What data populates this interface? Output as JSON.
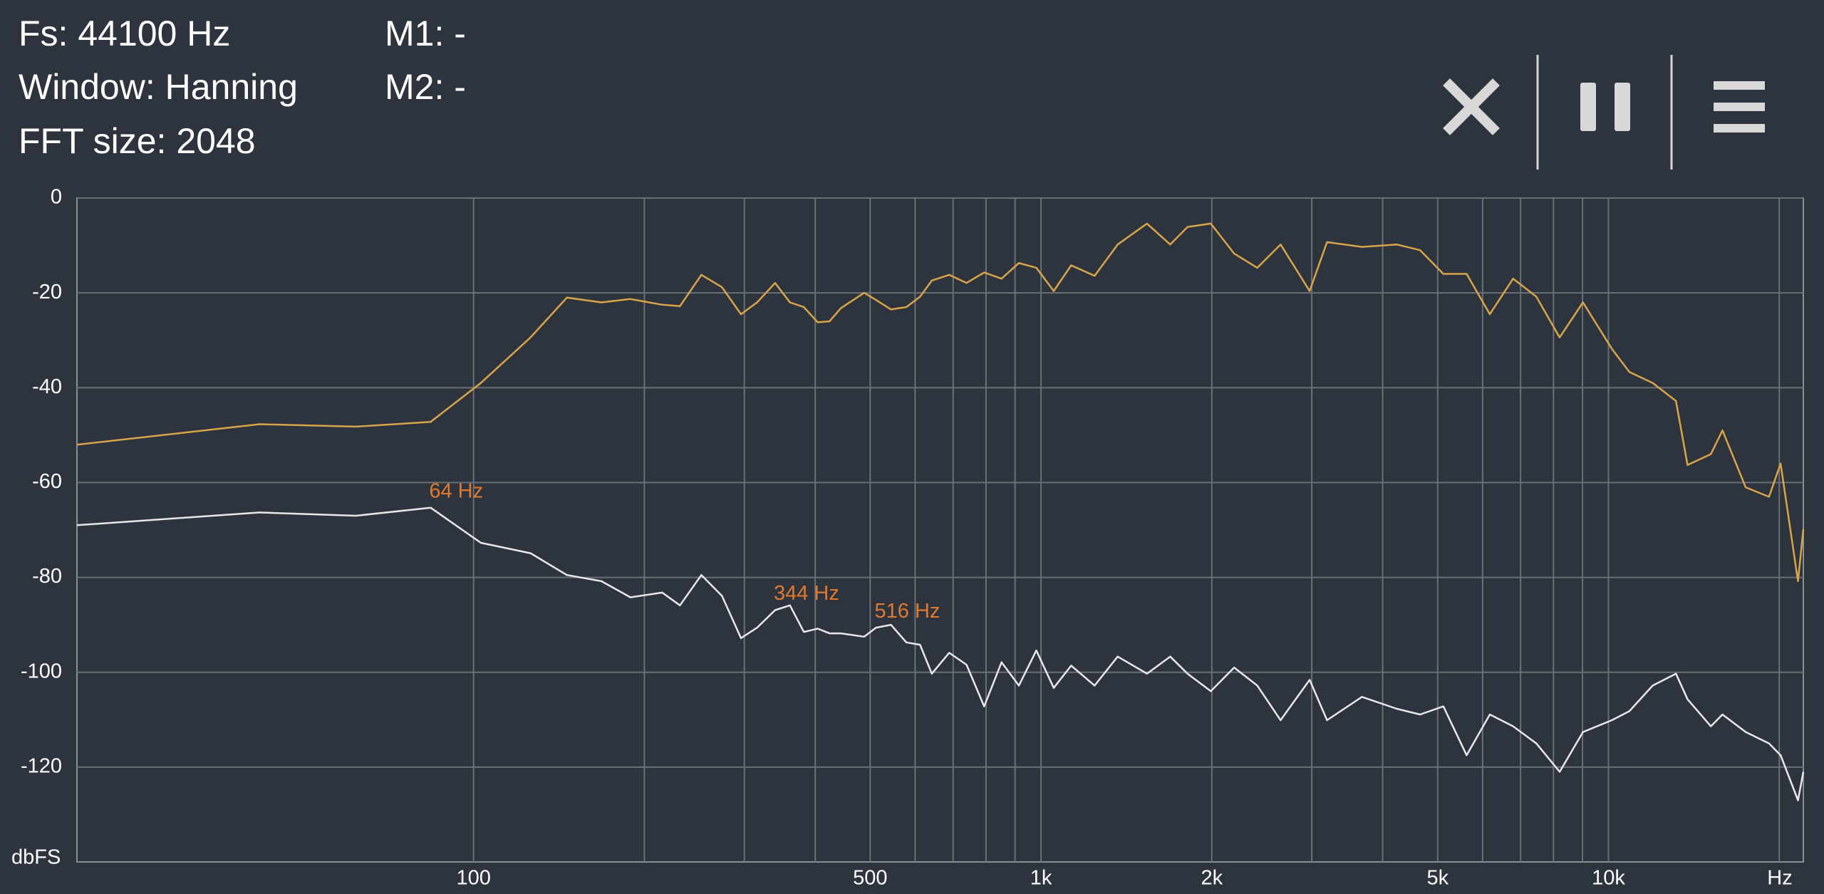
{
  "header": {
    "lines": [
      "Fs: 44100 Hz",
      "Window: Hanning",
      "FFT size: 2048"
    ],
    "markers": [
      "M1: -",
      "M2: -"
    ]
  },
  "chart_data": {
    "type": "line",
    "x_scale": "log",
    "grid": true,
    "x_label": "Hz",
    "y_label": "dbFS",
    "xlim": [
      20,
      22050
    ],
    "ylim": [
      -140,
      0
    ],
    "xticks": [
      100,
      500,
      {
        "value": 1000,
        "label": "1k"
      },
      {
        "value": 2000,
        "label": "2k"
      },
      {
        "value": 5000,
        "label": "5k"
      },
      {
        "value": 10000,
        "label": "10k"
      }
    ],
    "minor_xticks": [
      200,
      300,
      400,
      600,
      700,
      800,
      900,
      3000,
      4000,
      6000,
      7000,
      8000,
      9000,
      20000
    ],
    "yticks": [
      0,
      -20,
      -40,
      -60,
      -80,
      -100,
      -120
    ],
    "x": [
      20,
      42,
      62,
      84,
      103,
      126,
      146,
      168,
      189,
      215,
      231,
      252,
      274,
      296,
      316,
      340,
      361,
      382,
      404,
      424,
      444,
      488,
      512,
      544,
      579,
      612,
      642,
      689,
      739,
      794,
      852,
      914,
      981,
      1053,
      1130,
      1243,
      1365,
      1537,
      1689,
      1812,
      1992,
      2189,
      2405,
      2643,
      2974,
      3192,
      3678,
      4236,
      4656,
      5117,
      5623,
      6180,
      6792,
      7464,
      8203,
      9016,
      10140,
      10887,
      11966,
      13150,
      13785,
      15150,
      15880,
      17450,
      19180,
      20110,
      21580,
      22050
    ],
    "series": [
      {
        "color": "#d9a54a",
        "values": [
          -52,
          -47.7,
          -48.2,
          -47.2,
          -39,
          -29.4,
          -21,
          -22,
          -21.3,
          -22.5,
          -22.8,
          -16.2,
          -18.8,
          -24.5,
          -22,
          -17.9,
          -22,
          -23,
          -26.2,
          -26,
          -23.2,
          -20,
          -21.5,
          -23.5,
          -23,
          -20.8,
          -17.4,
          -16.2,
          -17.9,
          -15.7,
          -17,
          -13.7,
          -14.7,
          -19.6,
          -14.2,
          -16.4,
          -9.8,
          -5.4,
          -9.8,
          -6.1,
          -5.4,
          -11.7,
          -14.7,
          -9.8,
          -19.6,
          -9.3,
          -10.3,
          -9.8,
          -11,
          -16,
          -16,
          -24.5,
          -17,
          -20.8,
          -29.4,
          -22,
          -31.8,
          -36.7,
          -39,
          -42.8,
          -56.3,
          -54,
          -49,
          -61,
          -63,
          -56,
          -80.8,
          -69.8
        ]
      },
      {
        "color": "#e8e8e8",
        "values": [
          -69,
          -66.3,
          -67,
          -65.3,
          -72.7,
          -74.9,
          -79.5,
          -80.8,
          -84.2,
          -83.2,
          -85.9,
          -79.5,
          -83.9,
          -92.8,
          -90.6,
          -86.9,
          -85.9,
          -91.5,
          -90.8,
          -91.8,
          -91.8,
          -92.5,
          -90.6,
          -90,
          -93.7,
          -94.2,
          -100.3,
          -95.9,
          -98.4,
          -107.2,
          -97.9,
          -102.8,
          -95.4,
          -103.3,
          -98.6,
          -102.8,
          -96.7,
          -100.3,
          -96.7,
          -100.3,
          -104,
          -99,
          -102.8,
          -110.1,
          -101.6,
          -110.1,
          -105.2,
          -107.7,
          -108.9,
          -107.2,
          -117.5,
          -108.9,
          -111.4,
          -115,
          -121,
          -112.6,
          -110.1,
          -108.2,
          -102.8,
          -100.3,
          -105.7,
          -111.4,
          -108.9,
          -112.6,
          -115,
          -117.5,
          -127,
          -121
        ]
      }
    ],
    "annotations": [
      {
        "text": "64 Hz",
        "x": 84,
        "y": -65.3,
        "color": "#e07a30"
      },
      {
        "text": "344 Hz",
        "x": 340,
        "y": -86.9,
        "color": "#e07a30"
      },
      {
        "text": "516 Hz",
        "x": 512,
        "y": -90.6,
        "color": "#e07a30"
      }
    ]
  }
}
